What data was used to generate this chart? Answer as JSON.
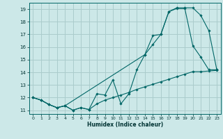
{
  "bg_color": "#cce8e8",
  "grid_color": "#aacccc",
  "line_color": "#006666",
  "xlabel": "Humidex (Indice chaleur)",
  "xlim": [
    -0.5,
    23.5
  ],
  "ylim": [
    10.7,
    19.5
  ],
  "yticks": [
    11,
    12,
    13,
    14,
    15,
    16,
    17,
    18,
    19
  ],
  "xticks": [
    0,
    1,
    2,
    3,
    4,
    5,
    6,
    7,
    8,
    9,
    10,
    11,
    12,
    13,
    14,
    15,
    16,
    17,
    18,
    19,
    20,
    21,
    22,
    23
  ],
  "curve1_x": [
    0,
    1,
    2,
    3,
    4,
    5,
    6,
    7,
    8,
    9,
    10,
    11,
    12,
    13,
    14,
    15,
    16,
    17,
    18,
    19,
    20,
    21,
    22,
    23
  ],
  "curve1_y": [
    12.0,
    11.8,
    11.45,
    11.2,
    11.35,
    11.0,
    11.2,
    11.05,
    12.3,
    12.2,
    13.4,
    11.5,
    12.3,
    14.2,
    15.4,
    16.9,
    17.0,
    18.8,
    19.1,
    19.1,
    19.1,
    18.5,
    17.3,
    14.2
  ],
  "curve2_x": [
    0,
    1,
    2,
    3,
    4,
    14,
    15,
    16,
    17,
    18,
    19,
    20,
    21,
    22,
    23
  ],
  "curve2_y": [
    12.0,
    11.8,
    11.45,
    11.2,
    11.35,
    15.4,
    16.2,
    17.0,
    18.8,
    19.05,
    19.05,
    16.1,
    15.2,
    14.2,
    14.2
  ],
  "curve3_x": [
    0,
    1,
    2,
    3,
    4,
    5,
    6,
    7,
    8,
    9,
    10,
    11,
    12,
    13,
    14,
    15,
    16,
    17,
    18,
    19,
    20,
    21,
    22,
    23
  ],
  "curve3_y": [
    12.0,
    11.8,
    11.45,
    11.2,
    11.35,
    11.0,
    11.2,
    11.05,
    11.5,
    11.8,
    12.0,
    12.2,
    12.4,
    12.65,
    12.85,
    13.05,
    13.25,
    13.45,
    13.65,
    13.85,
    14.05,
    14.05,
    14.1,
    14.15
  ]
}
